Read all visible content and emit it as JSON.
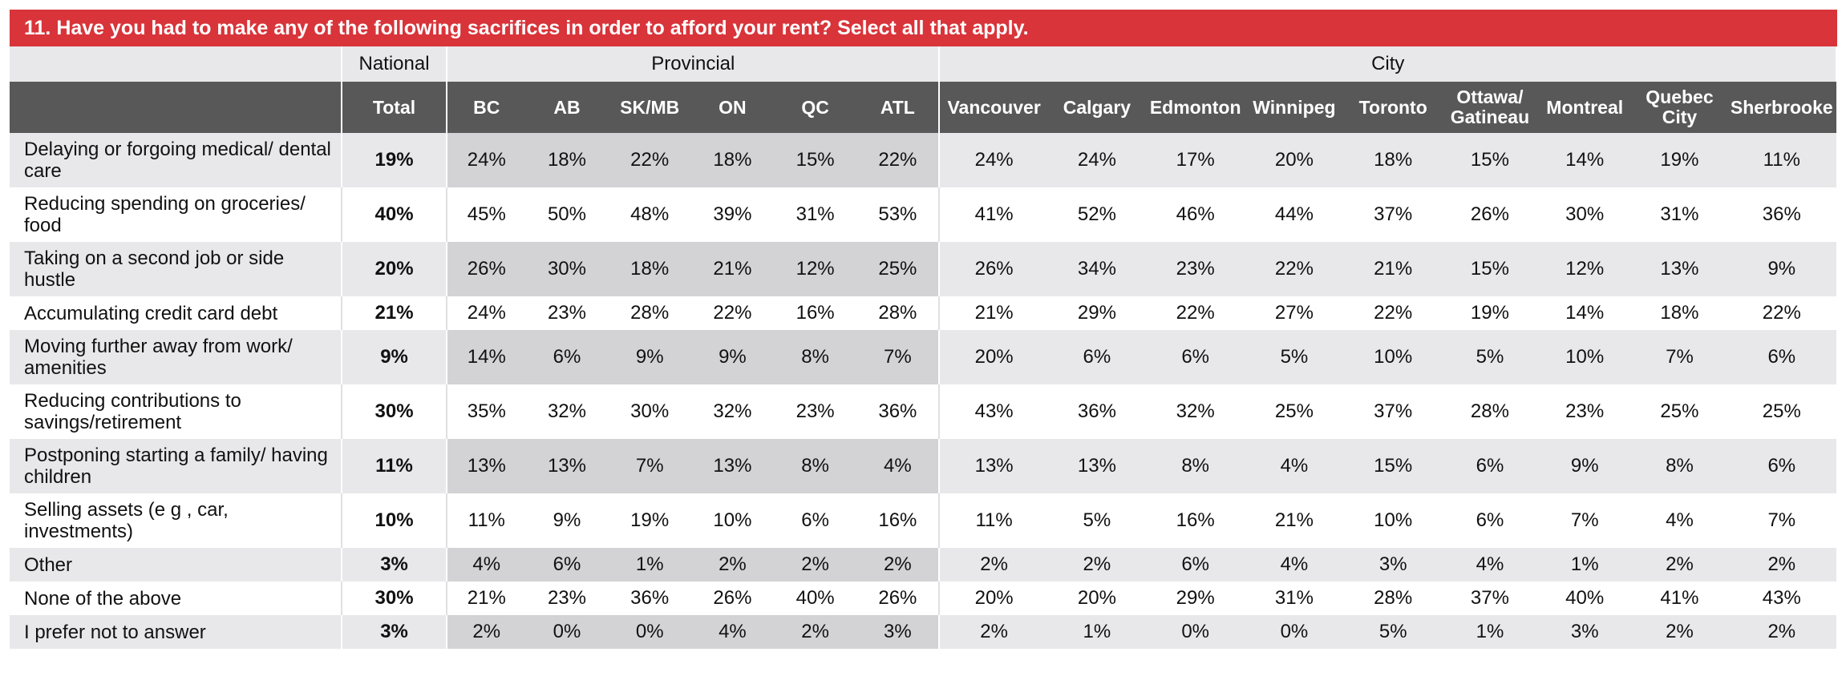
{
  "title": "11. Have you had to make any of the following sacrifices in order to afford your rent? Select all that apply.",
  "chart_data": {
    "type": "table",
    "groups": [
      {
        "label": "National",
        "span": 1
      },
      {
        "label": "Provincial",
        "span": 6
      },
      {
        "label": "City",
        "span": 9
      }
    ],
    "columns": [
      "Total",
      "BC",
      "AB",
      "SK/MB",
      "ON",
      "QC",
      "ATL",
      "Vancouver",
      "Calgary",
      "Edmonton",
      "Winnipeg",
      "Toronto",
      "Ottawa/ Gatineau",
      "Montreal",
      "Quebec City",
      "Sherbrooke"
    ],
    "rows": [
      {
        "label": "Delaying or forgoing medical/ dental care",
        "values": [
          "19%",
          "24%",
          "18%",
          "22%",
          "18%",
          "15%",
          "22%",
          "24%",
          "24%",
          "17%",
          "20%",
          "18%",
          "15%",
          "14%",
          "19%",
          "11%"
        ]
      },
      {
        "label": "Reducing spending on groceries/ food",
        "values": [
          "40%",
          "45%",
          "50%",
          "48%",
          "39%",
          "31%",
          "53%",
          "41%",
          "52%",
          "46%",
          "44%",
          "37%",
          "26%",
          "30%",
          "31%",
          "36%"
        ]
      },
      {
        "label": "Taking on a second job or side hustle",
        "values": [
          "20%",
          "26%",
          "30%",
          "18%",
          "21%",
          "12%",
          "25%",
          "26%",
          "34%",
          "23%",
          "22%",
          "21%",
          "15%",
          "12%",
          "13%",
          "9%"
        ]
      },
      {
        "label": "Accumulating credit card debt",
        "values": [
          "21%",
          "24%",
          "23%",
          "28%",
          "22%",
          "16%",
          "28%",
          "21%",
          "29%",
          "22%",
          "27%",
          "22%",
          "19%",
          "14%",
          "18%",
          "22%"
        ]
      },
      {
        "label": "Moving further away from work/ amenities",
        "values": [
          "9%",
          "14%",
          "6%",
          "9%",
          "9%",
          "8%",
          "7%",
          "20%",
          "6%",
          "6%",
          "5%",
          "10%",
          "5%",
          "10%",
          "7%",
          "6%"
        ]
      },
      {
        "label": "Reducing contributions to savings/retirement",
        "values": [
          "30%",
          "35%",
          "32%",
          "30%",
          "32%",
          "23%",
          "36%",
          "43%",
          "36%",
          "32%",
          "25%",
          "37%",
          "28%",
          "23%",
          "25%",
          "25%"
        ]
      },
      {
        "label": "Postponing starting a family/ having children",
        "values": [
          "11%",
          "13%",
          "13%",
          "7%",
          "13%",
          "8%",
          "4%",
          "13%",
          "13%",
          "8%",
          "4%",
          "15%",
          "6%",
          "9%",
          "8%",
          "6%"
        ]
      },
      {
        "label": "Selling assets (e g , car, investments)",
        "values": [
          "10%",
          "11%",
          "9%",
          "19%",
          "10%",
          "6%",
          "16%",
          "11%",
          "5%",
          "16%",
          "21%",
          "10%",
          "6%",
          "7%",
          "4%",
          "7%"
        ]
      },
      {
        "label": "Other",
        "values": [
          "3%",
          "4%",
          "6%",
          "1%",
          "2%",
          "2%",
          "2%",
          "2%",
          "2%",
          "6%",
          "4%",
          "3%",
          "4%",
          "1%",
          "2%",
          "2%"
        ]
      },
      {
        "label": "None of the above",
        "values": [
          "30%",
          "21%",
          "23%",
          "36%",
          "26%",
          "40%",
          "26%",
          "20%",
          "20%",
          "29%",
          "31%",
          "28%",
          "37%",
          "40%",
          "41%",
          "43%"
        ]
      },
      {
        "label": "I prefer not to answer",
        "values": [
          "3%",
          "2%",
          "0%",
          "0%",
          "4%",
          "2%",
          "3%",
          "2%",
          "1%",
          "0%",
          "0%",
          "5%",
          "1%",
          "3%",
          "2%",
          "2%"
        ]
      }
    ]
  }
}
